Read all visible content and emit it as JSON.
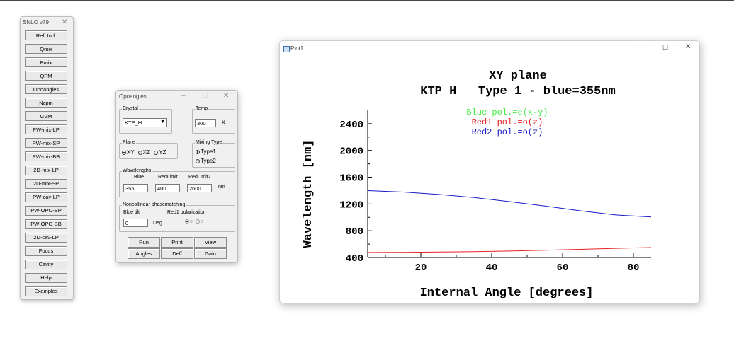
{
  "snlo_window": {
    "title": "SNLO v79",
    "buttons": [
      "Ref. Ind.",
      "Qmix",
      "Bmix",
      "QPM",
      "Opoangles",
      "Ncpm",
      "GVM",
      "PW-mix-LP",
      "PW-mix-SP",
      "PW-mix-BB",
      "2D-mix-LP",
      "2D-mix-SP",
      "PW-cav-LP",
      "PW-OPO-SP",
      "PW-OPO-BB",
      "2D-cav-LP",
      "Focus",
      "Cavity",
      "Help",
      "Examples"
    ]
  },
  "opoangles_window": {
    "title": "Opoangles",
    "crystal": {
      "label": "Crystal",
      "value": "KTP_H"
    },
    "temp": {
      "label": "Temp",
      "value": "300",
      "unit": "K"
    },
    "plane": {
      "label": "Plane",
      "options": [
        "XY",
        "XZ",
        "YZ"
      ],
      "selected": "XY"
    },
    "mixing_type": {
      "label": "Mixing Type",
      "options": [
        "Type1",
        "Type2"
      ],
      "selected": "Type1"
    },
    "wavelengths": {
      "label": "Wavelengths",
      "headers": [
        "Blue",
        "RedLimit1",
        "RedLimit2"
      ],
      "values": [
        "355",
        "400",
        "2600"
      ],
      "unit": "nm"
    },
    "noncollinear": {
      "label": "Noncollinear phasematching",
      "blue_tilt_label": "Blue tilt",
      "blue_tilt_value": "0",
      "blue_tilt_unit": "Deg",
      "red1_pol_label": "Red1 polarization",
      "pol_options": [
        "o",
        "o"
      ]
    },
    "buttons_row1": [
      "Run",
      "Print",
      "View"
    ],
    "buttons_row2": [
      "Angles",
      "Deff",
      "Gain"
    ]
  },
  "plot_window": {
    "title": "Plot1"
  },
  "chart_data": {
    "type": "line",
    "title": "XY plane",
    "subtitle": "KTP_H   Type 1 - blue=355nm",
    "xlabel": "Internal Angle [degrees]",
    "ylabel": "Wavelength [nm]",
    "xlim": [
      5,
      85
    ],
    "ylim": [
      400,
      2600
    ],
    "xticks": [
      20,
      40,
      60,
      80
    ],
    "yticks": [
      400,
      800,
      1200,
      1600,
      2000,
      2400
    ],
    "legend": [
      "Blue pol.=e(x-y)",
      "Red1 pol.=o(z)",
      "Red2 pol.=o(z)"
    ],
    "colors": {
      "blue_pol": "#44ee44",
      "red1": "#e82020",
      "red2": "#1a1ac8"
    },
    "series": [
      {
        "name": "Red1 pol.=o(z)",
        "color": "#e82020",
        "x": [
          5,
          15,
          25,
          35,
          45,
          55,
          65,
          75,
          85
        ],
        "y": [
          475,
          477,
          481,
          487,
          496,
          508,
          522,
          536,
          548
        ]
      },
      {
        "name": "Red2 pol.=o(z)",
        "color": "#1a1ac8",
        "x": [
          5,
          15,
          25,
          35,
          45,
          55,
          65,
          75,
          85
        ],
        "y": [
          1400,
          1378,
          1342,
          1296,
          1236,
          1170,
          1098,
          1036,
          1005
        ]
      }
    ]
  }
}
